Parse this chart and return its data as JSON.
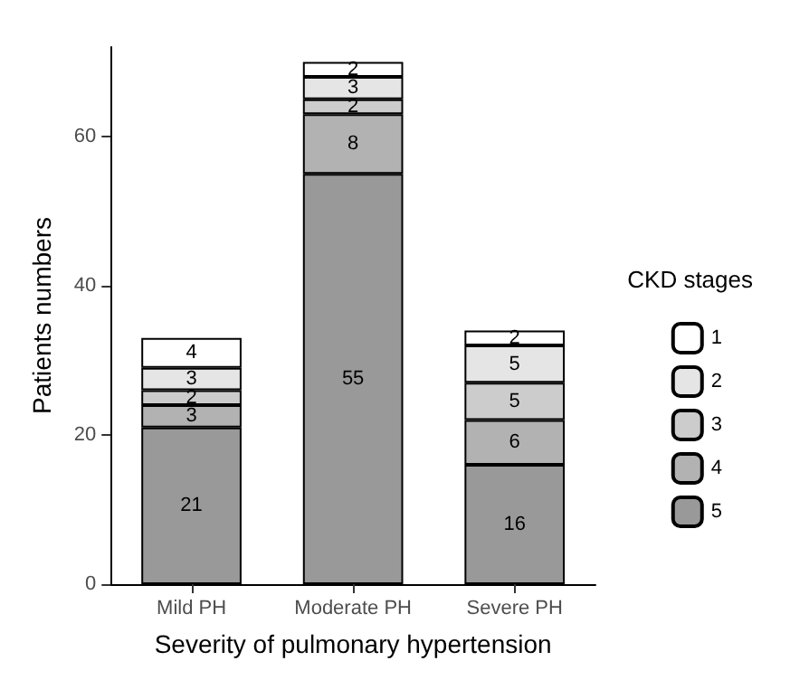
{
  "chart_data": {
    "type": "bar",
    "stacked": true,
    "xlabel": "Severity of pulmonary hypertension",
    "ylabel": "Patients numbers",
    "legend_title": "CKD stages",
    "legend": "right",
    "grid": false,
    "data_labels": true,
    "categories": [
      "Mild PH",
      "Moderate PH",
      "Severe PH"
    ],
    "ylim": [
      0,
      72
    ],
    "yticks": [
      0,
      20,
      40,
      60
    ],
    "series": [
      {
        "name": "5",
        "color": "#999999",
        "values": [
          21,
          55,
          16
        ]
      },
      {
        "name": "4",
        "color": "#b2b2b2",
        "values": [
          3,
          8,
          6
        ]
      },
      {
        "name": "3",
        "color": "#cccccc",
        "values": [
          2,
          2,
          5
        ]
      },
      {
        "name": "2",
        "color": "#e5e5e5",
        "values": [
          3,
          3,
          5
        ]
      },
      {
        "name": "1",
        "color": "#ffffff",
        "values": [
          4,
          2,
          2
        ]
      }
    ]
  }
}
